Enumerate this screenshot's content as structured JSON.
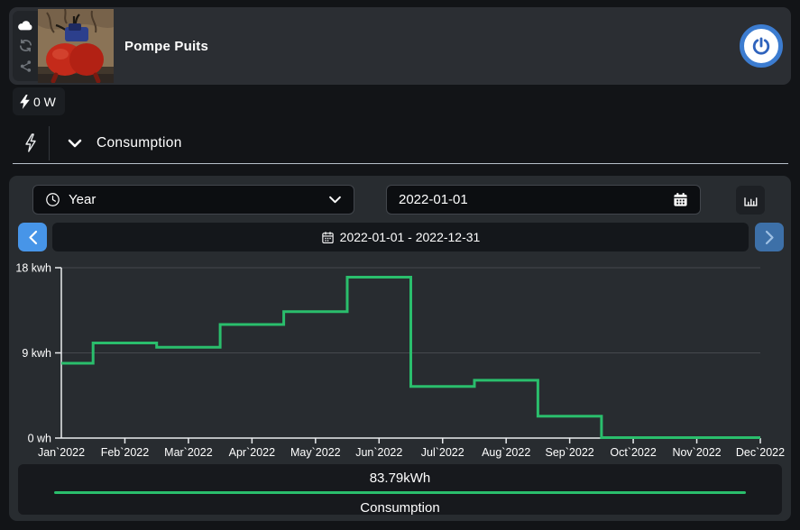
{
  "header": {
    "title": "Pompe Puits",
    "side_icons": [
      "cloud-icon",
      "refresh-icon",
      "share-icon"
    ],
    "power_button": "power"
  },
  "status": {
    "power_now": "0 W"
  },
  "tabs": {
    "consumption_label": "Consumption"
  },
  "controls": {
    "period_select": {
      "value": "Year"
    },
    "date_value": "2022-01-01",
    "range_label": "2022-01-01 - 2022-12-31"
  },
  "colors": {
    "accent_green": "#2abe6c",
    "nav_prev_blue": "#4795e8",
    "nav_next_blue": "#3d70a8",
    "power_ring_blue": "#3c7cd0",
    "grid": "#46494e",
    "axis": "#e9ebed"
  },
  "chart_data": {
    "type": "line",
    "step": "middle",
    "title": "",
    "xlabel": "",
    "ylabel": "",
    "x": [
      "Jan`2022",
      "Feb`2022",
      "Mar`2022",
      "Apr`2022",
      "May`2022",
      "Jun`2022",
      "Jul`2022",
      "Aug`2022",
      "Sep`2022",
      "Oct`2022",
      "Nov`2022",
      "Dec`2022"
    ],
    "series": [
      {
        "name": "Consumption",
        "color": "#2abe6c",
        "values": [
          7.9,
          10.05,
          9.6,
          12.0,
          13.35,
          17.0,
          5.45,
          6.1,
          2.3,
          0.05,
          0.05,
          0.05
        ]
      }
    ],
    "ylim": [
      0,
      18
    ],
    "yticks": [
      {
        "value": 18,
        "label": "18 kwh"
      },
      {
        "value": 9,
        "label": "9 kwh"
      },
      {
        "value": 0,
        "label": "0 wh"
      }
    ],
    "grid": "horizontal",
    "legend_position": "bottom"
  },
  "summary": {
    "total": "83.79kWh",
    "label": "Consumption"
  }
}
